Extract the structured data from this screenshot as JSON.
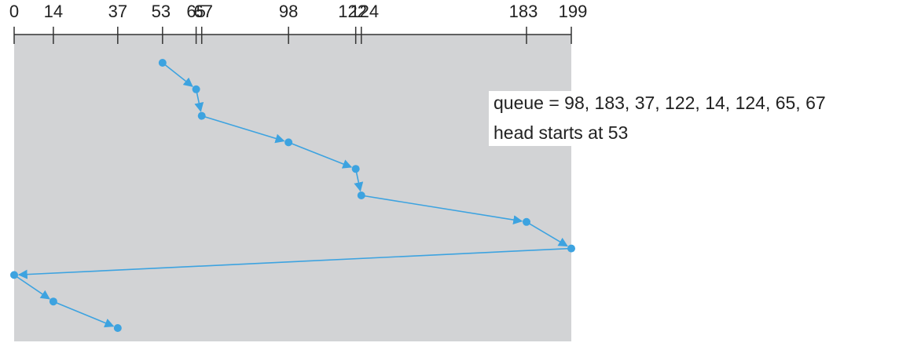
{
  "diagram": {
    "axis_ticks": [
      0,
      14,
      37,
      53,
      65,
      67,
      98,
      122,
      124,
      183,
      199
    ],
    "axis_tick_labels": [
      "0",
      "14",
      "37",
      "53",
      "65",
      "67",
      "98",
      "122",
      "124",
      "183",
      "199"
    ],
    "head_path": [
      53,
      65,
      67,
      98,
      122,
      124,
      183,
      199,
      0,
      14,
      37
    ],
    "axis_min": 0,
    "axis_max": 199,
    "queue_text": "queue = 98, 183, 37, 122, 14, 124, 65, 67",
    "head_text": "head starts at 53",
    "colors": {
      "path": "#3da3e0",
      "panel": "#d2d3d5",
      "axis": "#333333"
    }
  }
}
